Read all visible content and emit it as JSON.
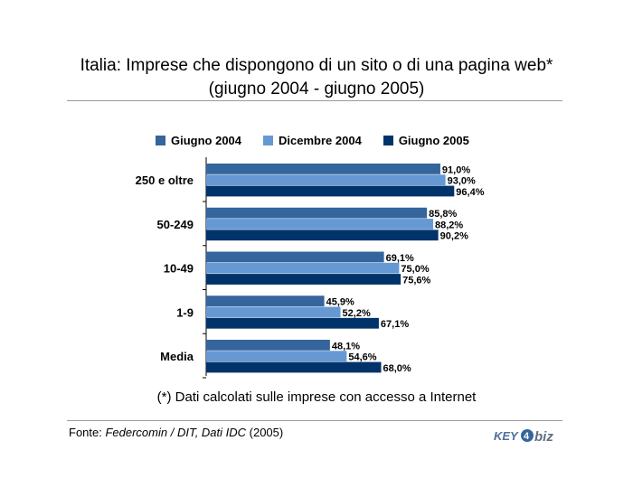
{
  "title_line1": "Italia: Imprese che dispongono di un sito o di una pagina web*",
  "title_line2": "(giugno 2004 - giugno 2005)",
  "footnote": "(*) Dati calcolati sulle imprese con accesso a Internet",
  "source": {
    "prefix": "Fonte: ",
    "italic": "Federcomin / DIT, Dati IDC",
    "suffix": " (2005)"
  },
  "logo": {
    "text_main": "KEY",
    "text_4": "4",
    "text_biz": "biz"
  },
  "colors": {
    "giugno2004": "#34659c",
    "dicembre2004": "#6699d3",
    "giugno2005": "#00336a"
  },
  "chart_data": {
    "type": "bar",
    "orientation": "horizontal",
    "categories": [
      "250 e oltre",
      "50-249",
      "10-49",
      "1-9",
      "Media"
    ],
    "series": [
      {
        "name": "Giugno 2004",
        "values": [
          91.0,
          85.8,
          69.1,
          45.9,
          48.1
        ],
        "labels": [
          "91,0%",
          "85,8%",
          "69,1%",
          "45,9%",
          "48,1%"
        ]
      },
      {
        "name": "Dicembre 2004",
        "values": [
          93.0,
          88.2,
          75.0,
          52.2,
          54.6
        ],
        "labels": [
          "93,0%",
          "88,2%",
          "75,0%",
          "52,2%",
          "54,6%"
        ]
      },
      {
        "name": "Giugno 2005",
        "values": [
          96.4,
          90.2,
          75.6,
          67.1,
          68.0
        ],
        "labels": [
          "96,4%",
          "90,2%",
          "75,6%",
          "67,1%",
          "68,0%"
        ]
      }
    ],
    "xlim": [
      0,
      100
    ],
    "legend": "top",
    "grid": false
  }
}
